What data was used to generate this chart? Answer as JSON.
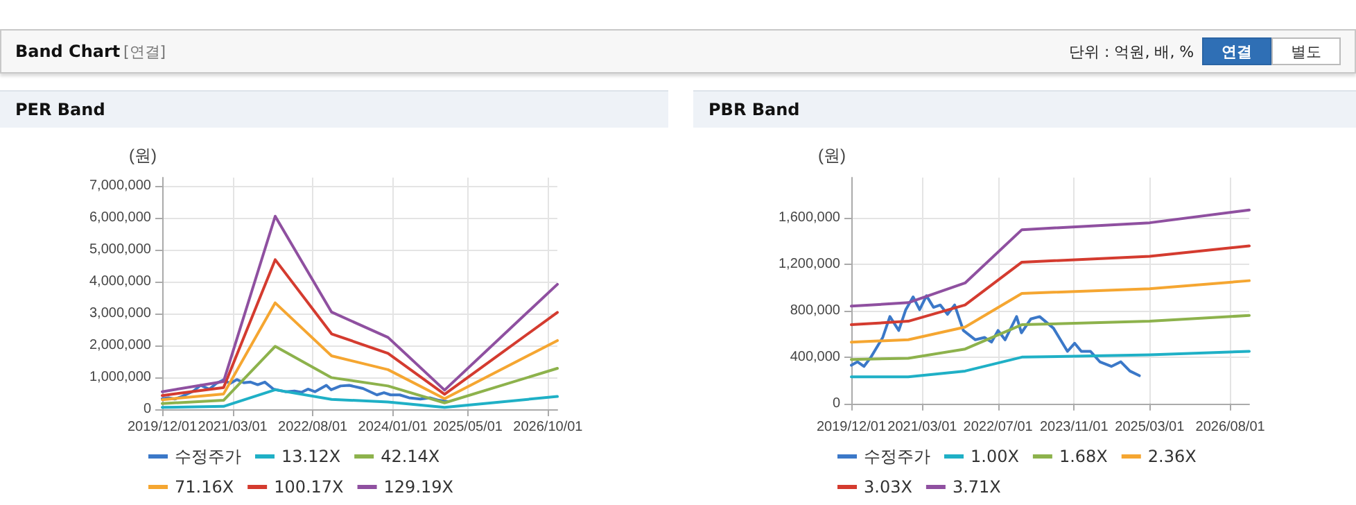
{
  "chart_data": [
    {
      "type": "line",
      "title": "PER Band",
      "ylabel": "(원)",
      "annotations": [
        "Band Chart",
        "[연결]",
        "단위 : 억원, 배, %",
        "연결",
        "별도"
      ],
      "xlim": [
        "2019-12-01",
        "2026-12-01"
      ],
      "xticks": [
        {
          "value": "2019-12-01",
          "label": "2019/12/01"
        },
        {
          "value": "2021-03-01",
          "label": "2021/03/01"
        },
        {
          "value": "2022-08-01",
          "label": "2022/08/01"
        },
        {
          "value": "2024-01-01",
          "label": "2024/01/01"
        },
        {
          "value": "2025-05-01",
          "label": "2025/05/01"
        },
        {
          "value": "2026-10-01",
          "label": "2026/10/01"
        }
      ],
      "ylim": [
        0,
        7250000
      ],
      "yticks": [
        {
          "value": 0,
          "label": "0"
        },
        {
          "value": 1000000,
          "label": "1,000,000"
        },
        {
          "value": 2000000,
          "label": "2,000,000"
        },
        {
          "value": 3000000,
          "label": "3,000,000"
        },
        {
          "value": 4000000,
          "label": "4,000,000"
        },
        {
          "value": 5000000,
          "label": "5,000,000"
        },
        {
          "value": 6000000,
          "label": "6,000,000"
        },
        {
          "value": 7000000,
          "label": "7,000,000"
        }
      ],
      "grid": true,
      "legend": "bottom",
      "marker": "none",
      "line_style": "solid",
      "series": [
        {
          "name": "수정주가",
          "color": "#3b78c8",
          "x": [
            "2019-12-01",
            "2020-01-10",
            "2020-02-20",
            "2020-04-05",
            "2020-06-20",
            "2020-08-05",
            "2020-10-01",
            "2020-11-15",
            "2021-01-01",
            "2021-02-12",
            "2021-03-28",
            "2021-05-12",
            "2021-06-25",
            "2021-08-10",
            "2021-09-25",
            "2021-11-20",
            "2022-02-05",
            "2022-04-05",
            "2022-05-20",
            "2022-07-01",
            "2022-08-15",
            "2022-10-28",
            "2022-11-28",
            "2023-01-28",
            "2023-03-25",
            "2023-06-22",
            "2023-09-20",
            "2023-11-05",
            "2023-12-18",
            "2024-02-15",
            "2024-04-15",
            "2024-06-28",
            "2024-08-28",
            "2024-10-25",
            "2024-12-25"
          ],
          "values": [
            330000,
            360000,
            320000,
            400000,
            570000,
            750000,
            630000,
            810000,
            920000,
            810000,
            930000,
            830000,
            850000,
            770000,
            850000,
            630000,
            550000,
            570000,
            530000,
            630000,
            550000,
            750000,
            610000,
            730000,
            750000,
            650000,
            450000,
            520000,
            450000,
            450000,
            360000,
            320000,
            360000,
            280000,
            240000
          ]
        },
        {
          "name": "13.12X",
          "color": "#1fb0c6",
          "x": [
            "2019-12-01",
            "2021-01-01",
            "2021-12-01",
            "2022-12-01",
            "2023-12-01",
            "2024-12-01",
            "2026-12-01"
          ],
          "values": [
            60000,
            90000,
            610000,
            310000,
            230000,
            60000,
            400000
          ]
        },
        {
          "name": "42.14X",
          "color": "#8db24c",
          "x": [
            "2019-12-01",
            "2021-01-01",
            "2021-12-01",
            "2022-12-01",
            "2023-12-01",
            "2024-12-01",
            "2026-12-01"
          ],
          "values": [
            180000,
            280000,
            1970000,
            990000,
            730000,
            200000,
            1280000
          ]
        },
        {
          "name": "71.16X",
          "color": "#f5a631",
          "x": [
            "2019-12-01",
            "2021-01-01",
            "2021-12-01",
            "2022-12-01",
            "2023-12-01",
            "2024-12-01",
            "2026-12-01"
          ],
          "values": [
            300000,
            480000,
            3330000,
            1670000,
            1240000,
            330000,
            2150000
          ]
        },
        {
          "name": "100.17X",
          "color": "#d43b2f",
          "x": [
            "2019-12-01",
            "2021-01-01",
            "2021-12-01",
            "2022-12-01",
            "2023-12-01",
            "2024-12-01",
            "2026-12-01"
          ],
          "values": [
            430000,
            680000,
            4680000,
            2360000,
            1750000,
            470000,
            3030000
          ]
        },
        {
          "name": "129.19X",
          "color": "#8f50a0",
          "x": [
            "2019-12-01",
            "2021-01-01",
            "2021-12-01",
            "2022-12-01",
            "2023-12-01",
            "2024-12-01",
            "2026-12-01"
          ],
          "values": [
            550000,
            870000,
            6040000,
            3040000,
            2250000,
            600000,
            3910000
          ]
        }
      ]
    },
    {
      "type": "line",
      "title": "PBR Band",
      "ylabel": "(원)",
      "xlim": [
        "2019-12-01",
        "2026-12-01"
      ],
      "xticks": [
        {
          "value": "2019-12-01",
          "label": "2019/12/01"
        },
        {
          "value": "2021-03-01",
          "label": "2021/03/01"
        },
        {
          "value": "2022-07-01",
          "label": "2022/07/01"
        },
        {
          "value": "2023-11-01",
          "label": "2023/11/01"
        },
        {
          "value": "2025-03-01",
          "label": "2025/03/01"
        },
        {
          "value": "2026-08-01",
          "label": "2026/08/01"
        }
      ],
      "ylim": [
        -50000,
        1950000
      ],
      "yticks": [
        {
          "value": 0,
          "label": "0"
        },
        {
          "value": 400000,
          "label": "400,000"
        },
        {
          "value": 800000,
          "label": "800,000"
        },
        {
          "value": 1200000,
          "label": "1,200,000"
        },
        {
          "value": 1600000,
          "label": "1,600,000"
        }
      ],
      "grid": true,
      "legend": "bottom",
      "marker": "none",
      "line_style": "solid",
      "series": [
        {
          "name": "수정주가",
          "color": "#3b78c8",
          "x": [
            "2019-12-01",
            "2020-01-10",
            "2020-02-20",
            "2020-04-05",
            "2020-06-20",
            "2020-08-05",
            "2020-10-01",
            "2020-11-15",
            "2021-01-01",
            "2021-02-12",
            "2021-03-28",
            "2021-05-12",
            "2021-06-25",
            "2021-08-10",
            "2021-09-25",
            "2021-11-20",
            "2022-02-05",
            "2022-04-05",
            "2022-05-20",
            "2022-07-01",
            "2022-08-15",
            "2022-10-28",
            "2022-11-28",
            "2023-01-28",
            "2023-03-25",
            "2023-06-22",
            "2023-09-20",
            "2023-11-05",
            "2023-12-18",
            "2024-02-15",
            "2024-04-15",
            "2024-06-28",
            "2024-08-28",
            "2024-10-25",
            "2024-12-25"
          ],
          "values": [
            330000,
            360000,
            320000,
            400000,
            570000,
            750000,
            630000,
            810000,
            920000,
            810000,
            930000,
            830000,
            850000,
            770000,
            850000,
            630000,
            550000,
            570000,
            530000,
            630000,
            550000,
            750000,
            610000,
            730000,
            750000,
            650000,
            450000,
            520000,
            450000,
            450000,
            360000,
            320000,
            360000,
            280000,
            240000
          ]
        },
        {
          "name": "1.00X",
          "color": "#1fb0c6",
          "x": [
            "2019-12-01",
            "2020-12-01",
            "2021-12-01",
            "2022-12-01",
            "2025-03-01",
            "2026-12-01"
          ],
          "values": [
            230000,
            230000,
            280000,
            400000,
            420000,
            450000
          ]
        },
        {
          "name": "1.68X",
          "color": "#8db24c",
          "x": [
            "2019-12-01",
            "2020-12-01",
            "2021-12-01",
            "2022-12-01",
            "2025-03-01",
            "2026-12-01"
          ],
          "values": [
            380000,
            390000,
            470000,
            680000,
            710000,
            760000
          ]
        },
        {
          "name": "2.36X",
          "color": "#f5a631",
          "x": [
            "2019-12-01",
            "2020-12-01",
            "2021-12-01",
            "2022-12-01",
            "2025-03-01",
            "2026-12-01"
          ],
          "values": [
            530000,
            550000,
            660000,
            950000,
            990000,
            1060000
          ]
        },
        {
          "name": "3.03X",
          "color": "#d43b2f",
          "x": [
            "2019-12-01",
            "2020-12-01",
            "2021-12-01",
            "2022-12-01",
            "2025-03-01",
            "2026-12-01"
          ],
          "values": [
            680000,
            710000,
            850000,
            1220000,
            1270000,
            1360000
          ]
        },
        {
          "name": "3.71X",
          "color": "#8f50a0",
          "x": [
            "2019-12-01",
            "2020-12-01",
            "2021-12-01",
            "2022-12-01",
            "2025-03-01",
            "2026-12-01"
          ],
          "values": [
            840000,
            870000,
            1040000,
            1500000,
            1560000,
            1670000
          ]
        }
      ]
    }
  ]
}
